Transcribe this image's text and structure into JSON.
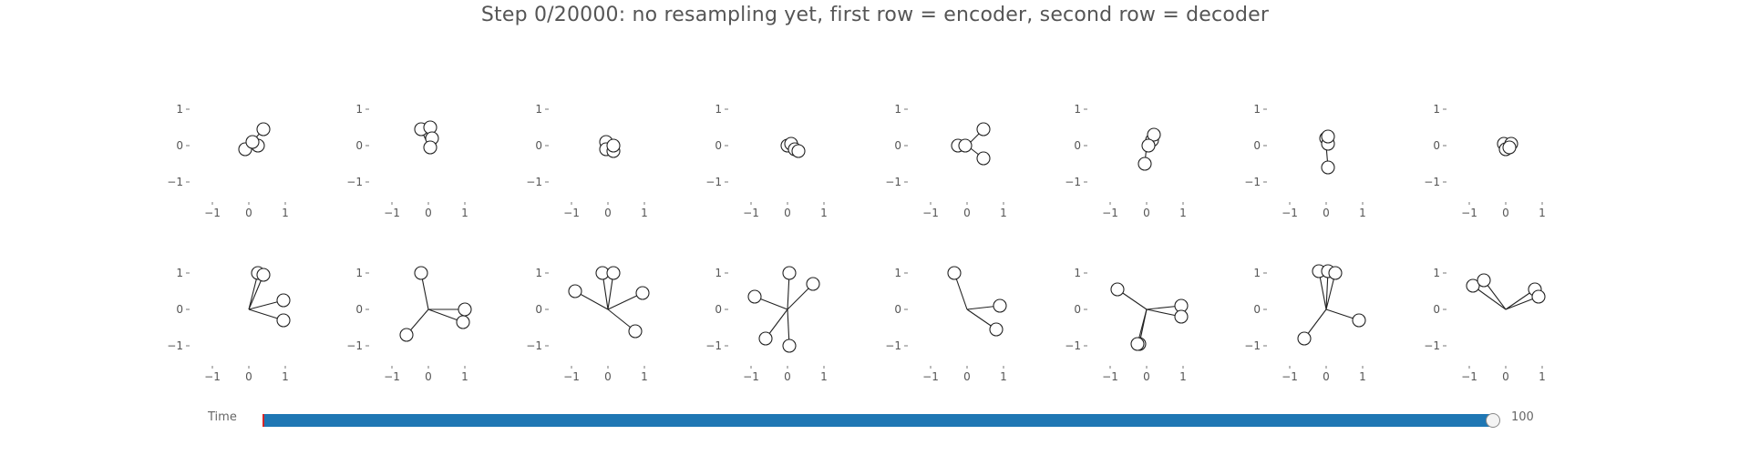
{
  "title": "Step 0/20000: no resampling yet, first row = encoder, second row = decoder",
  "slider": {
    "label": "Time",
    "max_label": "100",
    "value": 100,
    "min": 0,
    "max": 100,
    "fill_color": "#1f77b4",
    "start_marker_color": "#d62728"
  },
  "chart_data": {
    "type": "scatter",
    "grid": "2 rows x 8 columns of small panels",
    "axes": {
      "xlim": [
        -1.5,
        1.5
      ],
      "ylim": [
        -1.5,
        1.5
      ],
      "xticks": [
        "−1",
        "0",
        "1"
      ],
      "yticks": [
        "1",
        "0",
        "−1"
      ],
      "xtick_values": [
        -1,
        0,
        1
      ],
      "ytick_values": [
        1,
        0,
        -1
      ]
    },
    "line_color": "#222222",
    "rows": [
      {
        "row": "encoder",
        "panels": [
          {
            "center": [
              0,
              0
            ],
            "points": [
              [
                -0.1,
                -0.1
              ],
              [
                0.25,
                0.0
              ],
              [
                0.1,
                0.1
              ],
              [
                0.4,
                0.45
              ]
            ]
          },
          {
            "center": [
              0,
              0
            ],
            "points": [
              [
                -0.2,
                0.45
              ],
              [
                0.05,
                0.5
              ],
              [
                0.1,
                0.2
              ],
              [
                0.05,
                -0.05
              ]
            ]
          },
          {
            "center": [
              0,
              0
            ],
            "points": [
              [
                -0.05,
                0.1
              ],
              [
                -0.05,
                -0.1
              ],
              [
                0.15,
                -0.15
              ],
              [
                0.15,
                0.0
              ]
            ]
          },
          {
            "center": [
              0,
              0
            ],
            "points": [
              [
                0.0,
                0.0
              ],
              [
                0.1,
                0.05
              ],
              [
                0.2,
                -0.1
              ],
              [
                0.3,
                -0.15
              ]
            ]
          },
          {
            "center": [
              0,
              0
            ],
            "points": [
              [
                -0.25,
                0.0
              ],
              [
                -0.05,
                0.0
              ],
              [
                0.45,
                0.45
              ],
              [
                0.45,
                -0.35
              ]
            ]
          },
          {
            "center": [
              0,
              0
            ],
            "points": [
              [
                0.15,
                0.15
              ],
              [
                0.2,
                0.3
              ],
              [
                0.05,
                0.0
              ],
              [
                -0.05,
                -0.5
              ]
            ]
          },
          {
            "center": [
              0,
              0
            ],
            "points": [
              [
                0.0,
                0.2
              ],
              [
                0.05,
                0.05
              ],
              [
                0.05,
                0.25
              ],
              [
                0.05,
                -0.6
              ]
            ]
          },
          {
            "center": [
              0,
              0
            ],
            "points": [
              [
                -0.05,
                0.05
              ],
              [
                0.15,
                0.05
              ],
              [
                0.0,
                -0.1
              ],
              [
                0.1,
                -0.05
              ]
            ]
          }
        ]
      },
      {
        "row": "decoder",
        "panels": [
          {
            "center": [
              0,
              0
            ],
            "points": [
              [
                0.25,
                1.0
              ],
              [
                0.4,
                0.95
              ],
              [
                0.95,
                0.25
              ],
              [
                0.95,
                -0.3
              ]
            ]
          },
          {
            "center": [
              0,
              0
            ],
            "points": [
              [
                -0.2,
                1.0
              ],
              [
                1.0,
                0.0
              ],
              [
                0.95,
                -0.35
              ],
              [
                -0.6,
                -0.7
              ]
            ]
          },
          {
            "center": [
              0,
              0
            ],
            "points": [
              [
                -0.9,
                0.5
              ],
              [
                -0.15,
                1.0
              ],
              [
                0.15,
                1.0
              ],
              [
                0.95,
                0.45
              ],
              [
                0.75,
                -0.6
              ]
            ]
          },
          {
            "center": [
              0,
              0
            ],
            "points": [
              [
                -0.9,
                0.35
              ],
              [
                0.05,
                1.0
              ],
              [
                0.7,
                0.7
              ],
              [
                -0.6,
                -0.8
              ],
              [
                0.05,
                -1.0
              ]
            ]
          },
          {
            "center": [
              0,
              0
            ],
            "points": [
              [
                -0.35,
                1.0
              ],
              [
                0.9,
                0.1
              ],
              [
                0.8,
                -0.55
              ]
            ]
          },
          {
            "center": [
              0,
              0
            ],
            "points": [
              [
                -0.8,
                0.55
              ],
              [
                0.95,
                0.1
              ],
              [
                0.95,
                -0.2
              ],
              [
                -0.2,
                -0.95
              ],
              [
                -0.25,
                -0.95
              ]
            ]
          },
          {
            "center": [
              0,
              0
            ],
            "points": [
              [
                -0.2,
                1.05
              ],
              [
                0.05,
                1.05
              ],
              [
                0.25,
                1.0
              ],
              [
                0.9,
                -0.3
              ],
              [
                -0.6,
                -0.8
              ]
            ]
          },
          {
            "center": [
              0,
              0
            ],
            "points": [
              [
                -0.9,
                0.65
              ],
              [
                -0.6,
                0.8
              ],
              [
                0.8,
                0.55
              ],
              [
                0.9,
                0.35
              ]
            ]
          }
        ]
      }
    ]
  }
}
